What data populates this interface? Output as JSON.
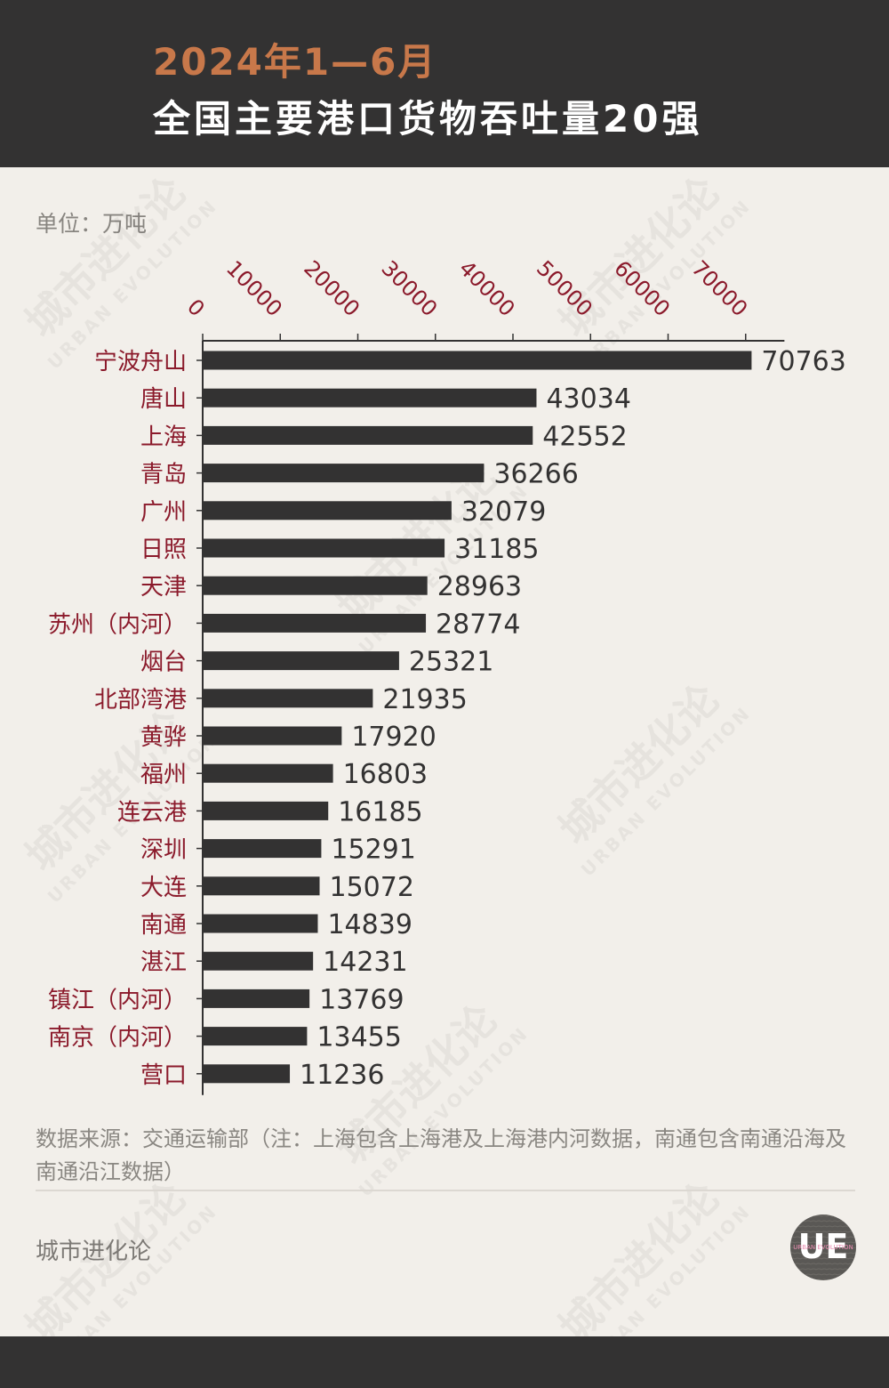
{
  "header": {
    "title_line1": "2024年1—6月",
    "title_line2": "全国主要港口货物吞吐量20强"
  },
  "unit_label": "单位：万吨",
  "watermark": {
    "cn": "城市进化论",
    "en": "URBAN EVOLUTION"
  },
  "chart_data": {
    "type": "bar",
    "orientation": "horizontal",
    "categories": [
      "宁波舟山",
      "唐山",
      "上海",
      "青岛",
      "广州",
      "日照",
      "天津",
      "苏州（内河）",
      "烟台",
      "北部湾港",
      "黄骅",
      "福州",
      "连云港",
      "深圳",
      "大连",
      "南通",
      "湛江",
      "镇江（内河）",
      "南京（内河）",
      "营口"
    ],
    "values": [
      70763,
      43034,
      42552,
      36266,
      32079,
      31185,
      28963,
      28774,
      25321,
      21935,
      17920,
      16803,
      16185,
      15291,
      15072,
      14839,
      14231,
      13769,
      13455,
      11236
    ],
    "x_ticks": [
      "0",
      "10000",
      "20000",
      "30000",
      "40000",
      "50000",
      "60000",
      "70000"
    ],
    "xlim": [
      0,
      75000
    ],
    "axis_position": "top",
    "bar_color": "#333232",
    "category_color": "#8b1a2b",
    "tick_color": "#8b1a2b",
    "value_label_color": "#333232"
  },
  "footer": {
    "source_note": "数据来源：交通运输部（注：上海包含上海港及上海港内河数据，南通包含南通沿海及南通沿江数据）",
    "brand": "城市进化论",
    "logo_text": "UE",
    "logo_subtext": "URBAN EVOLUTION"
  }
}
